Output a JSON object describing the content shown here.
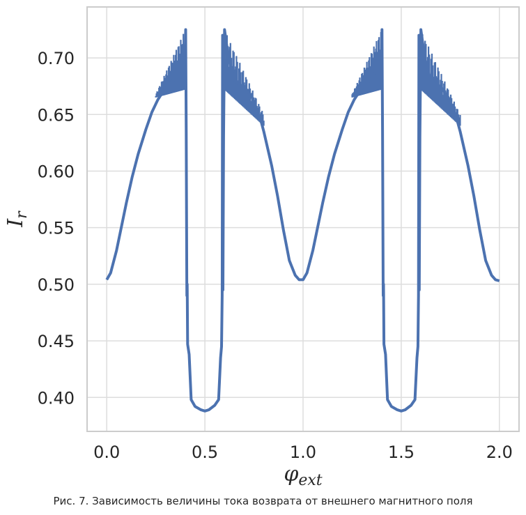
{
  "chart_data": {
    "type": "line",
    "title": "",
    "xlabel": "φ",
    "xlabel_sub": "ext",
    "ylabel": "I",
    "ylabel_sub": "r",
    "xlim": [
      -0.1,
      2.1
    ],
    "ylim": [
      0.37,
      0.745
    ],
    "xticks": [
      0.0,
      0.5,
      1.0,
      1.5,
      2.0
    ],
    "xtick_labels": [
      "0.0",
      "0.5",
      "1.0",
      "1.5",
      "2.0"
    ],
    "yticks": [
      0.4,
      0.45,
      0.5,
      0.55,
      0.6,
      0.65,
      0.7
    ],
    "ytick_labels": [
      "0.40",
      "0.45",
      "0.50",
      "0.55",
      "0.60",
      "0.65",
      "0.70"
    ],
    "grid": true,
    "line_color": "#4c72b0",
    "series": [
      {
        "name": "",
        "x": [
          0.0,
          0.02,
          0.05,
          0.08,
          0.1,
          0.13,
          0.16,
          0.2,
          0.23,
          0.26,
          0.29,
          0.32,
          0.35,
          0.38,
          0.4,
          0.402,
          0.405,
          0.408,
          0.41,
          0.412,
          0.42,
          0.43,
          0.45,
          0.48,
          0.5,
          0.52,
          0.55,
          0.57,
          0.58,
          0.585,
          0.588,
          0.59,
          0.592,
          0.595,
          0.6,
          0.62,
          0.65,
          0.68,
          0.7,
          0.74,
          0.78,
          0.8,
          0.84,
          0.87,
          0.9,
          0.93,
          0.96,
          0.98,
          1.0,
          1.02,
          1.05,
          1.08,
          1.1,
          1.13,
          1.16,
          1.2,
          1.23,
          1.26,
          1.29,
          1.32,
          1.35,
          1.38,
          1.4,
          1.402,
          1.405,
          1.408,
          1.41,
          1.412,
          1.42,
          1.43,
          1.45,
          1.48,
          1.5,
          1.52,
          1.55,
          1.57,
          1.58,
          1.585,
          1.588,
          1.59,
          1.592,
          1.595,
          1.6,
          1.62,
          1.65,
          1.68,
          1.7,
          1.74,
          1.78,
          1.8,
          1.84,
          1.87,
          1.9,
          1.93,
          1.96,
          1.98,
          2.0
        ],
        "y": [
          0.504,
          0.51,
          0.53,
          0.555,
          0.572,
          0.595,
          0.615,
          0.637,
          0.652,
          0.663,
          0.671,
          0.677,
          0.682,
          0.69,
          0.705,
          0.725,
          0.635,
          0.49,
          0.5,
          0.447,
          0.438,
          0.398,
          0.392,
          0.389,
          0.388,
          0.389,
          0.393,
          0.398,
          0.435,
          0.445,
          0.49,
          0.72,
          0.495,
          0.63,
          0.725,
          0.7,
          0.68,
          0.676,
          0.675,
          0.665,
          0.648,
          0.635,
          0.605,
          0.578,
          0.548,
          0.521,
          0.508,
          0.504,
          0.504,
          0.51,
          0.53,
          0.555,
          0.572,
          0.595,
          0.615,
          0.637,
          0.652,
          0.663,
          0.671,
          0.677,
          0.682,
          0.69,
          0.705,
          0.725,
          0.635,
          0.49,
          0.5,
          0.447,
          0.438,
          0.398,
          0.392,
          0.389,
          0.388,
          0.389,
          0.393,
          0.398,
          0.435,
          0.445,
          0.49,
          0.72,
          0.495,
          0.63,
          0.725,
          0.7,
          0.68,
          0.676,
          0.675,
          0.665,
          0.648,
          0.635,
          0.605,
          0.578,
          0.548,
          0.521,
          0.508,
          0.504,
          0.503
        ]
      }
    ],
    "oscillation_bands": [
      {
        "x_start": 0.25,
        "x_end": 0.4,
        "y_low_start": 0.665,
        "y_low_end": 0.672,
        "y_high_start": 0.668,
        "y_high_end": 0.725
      },
      {
        "x_start": 0.6,
        "x_end": 0.8,
        "y_low_start": 0.672,
        "y_low_end": 0.64,
        "y_high_start": 0.725,
        "y_high_end": 0.65
      },
      {
        "x_start": 1.25,
        "x_end": 1.4,
        "y_low_start": 0.665,
        "y_low_end": 0.672,
        "y_high_start": 0.668,
        "y_high_end": 0.725
      },
      {
        "x_start": 1.6,
        "x_end": 1.8,
        "y_low_start": 0.672,
        "y_low_end": 0.64,
        "y_high_start": 0.725,
        "y_high_end": 0.65
      }
    ]
  },
  "caption": "Рис. 7. Зависимость величины тока возврата от внешнего магнитного поля"
}
